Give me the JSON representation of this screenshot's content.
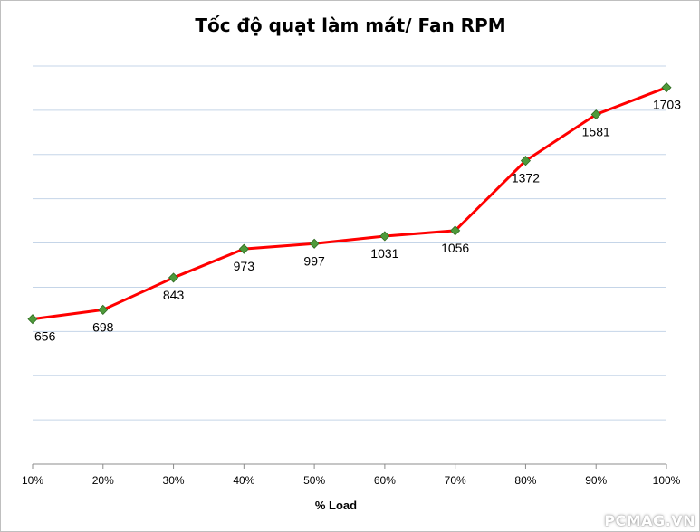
{
  "chart_data": {
    "type": "line",
    "title": "Tốc độ quạt làm mát/ Fan RPM",
    "xlabel": "% Load",
    "ylabel": "",
    "categories": [
      "10%",
      "20%",
      "30%",
      "40%",
      "50%",
      "60%",
      "70%",
      "80%",
      "90%",
      "100%"
    ],
    "series": [
      {
        "values": [
          656,
          698,
          843,
          973,
          997,
          1031,
          1056,
          1372,
          1581,
          1703
        ],
        "line_color": "#ff0000",
        "marker_color": "#4e9a3a"
      }
    ],
    "ylim": [
      0,
      1800
    ],
    "grid": true,
    "legend": "none",
    "data_labels": true
  },
  "watermark": "PCMAG.VN"
}
